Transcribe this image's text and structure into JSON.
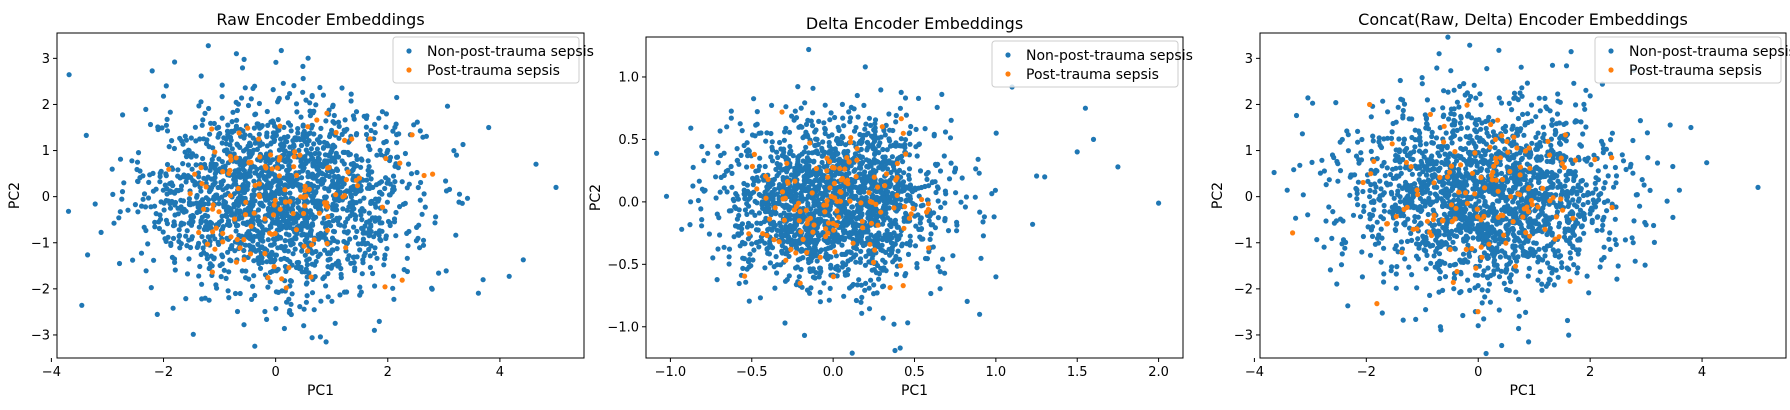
{
  "chart_data": [
    {
      "type": "scatter",
      "title": "Raw Encoder Embeddings",
      "xlabel": "PC1",
      "ylabel": "PC2",
      "xlim": [
        -3.9,
        5.5
      ],
      "ylim": [
        -3.5,
        3.55
      ],
      "xticks": [
        -4,
        -2,
        0,
        2,
        4
      ],
      "yticks": [
        -3,
        -2,
        -1,
        0,
        1,
        2,
        3
      ],
      "legend_position": "top-right",
      "series": [
        {
          "name": "Non-post-trauma sepsis",
          "color": "#1f77b4",
          "count": 1900,
          "spread_x": 1.2,
          "spread_y": 1.0
        },
        {
          "name": "Post-trauma sepsis",
          "color": "#ff7f0e",
          "count": 130,
          "spread_x": 1.0,
          "spread_y": 0.85
        }
      ],
      "outliers": [
        [
          5.0,
          0.2
        ],
        [
          3.8,
          1.5
        ],
        [
          0.5,
          -2.8
        ],
        [
          0.9,
          -3.15
        ],
        [
          -0.7,
          3.1
        ]
      ]
    },
    {
      "type": "scatter",
      "title": "Delta Encoder Embeddings",
      "xlabel": "PC1",
      "ylabel": "PC2",
      "xlim": [
        -1.15,
        2.15
      ],
      "ylim": [
        -1.25,
        1.32
      ],
      "xticks": [
        -1.0,
        -0.5,
        0.0,
        0.5,
        1.0,
        1.5,
        2.0
      ],
      "yticks": [
        -1.0,
        -0.5,
        0.0,
        0.5,
        1.0
      ],
      "legend_position": "top-right",
      "series": [
        {
          "name": "Non-post-trauma sepsis",
          "color": "#1f77b4",
          "count": 1900,
          "spread_x": 0.33,
          "spread_y": 0.33
        },
        {
          "name": "Post-trauma sepsis",
          "color": "#ff7f0e",
          "count": 130,
          "spread_x": 0.28,
          "spread_y": 0.3
        }
      ],
      "outliers": [
        [
          2.0,
          -0.01
        ],
        [
          1.55,
          0.75
        ],
        [
          1.6,
          0.5
        ],
        [
          1.75,
          0.28
        ],
        [
          1.5,
          0.4
        ],
        [
          1.3,
          0.2
        ],
        [
          1.1,
          0.92
        ],
        [
          0.38,
          -1.19
        ],
        [
          -0.15,
          1.22
        ],
        [
          1.0,
          -0.6
        ],
        [
          0.9,
          -0.9
        ]
      ]
    },
    {
      "type": "scatter",
      "title": "Concat(Raw, Delta) Encoder Embeddings",
      "xlabel": "PC1",
      "ylabel": "PC2",
      "xlim": [
        -3.9,
        5.5
      ],
      "ylim": [
        -3.5,
        3.55
      ],
      "xticks": [
        -4,
        -2,
        0,
        2,
        4
      ],
      "yticks": [
        -3,
        -2,
        -1,
        0,
        1,
        2,
        3
      ],
      "legend_position": "top-right",
      "series": [
        {
          "name": "Non-post-trauma sepsis",
          "color": "#1f77b4",
          "count": 1900,
          "spread_x": 1.2,
          "spread_y": 1.0
        },
        {
          "name": "Post-trauma sepsis",
          "color": "#ff7f0e",
          "count": 130,
          "spread_x": 1.0,
          "spread_y": 0.85
        }
      ],
      "outliers": [
        [
          5.0,
          0.2
        ],
        [
          3.8,
          1.5
        ],
        [
          0.0,
          -2.8
        ],
        [
          0.9,
          -3.15
        ],
        [
          -0.7,
          3.1
        ]
      ]
    }
  ]
}
